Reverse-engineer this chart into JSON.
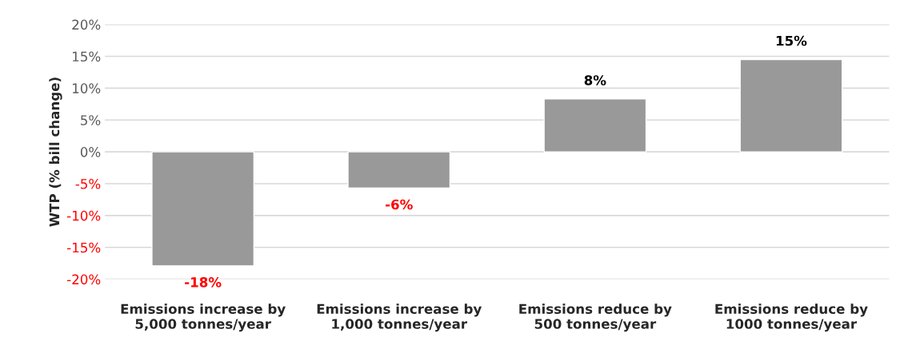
{
  "chart_data": {
    "type": "bar",
    "ylabel": "WTP (% bill change)",
    "categories": [
      "Emissions increase by\n5,000 tonnes/year",
      "Emissions increase by\n1,000 tonnes/year",
      "Emissions reduce by\n500 tonnes/year",
      "Emissions reduce by\n1000 tonnes/year"
    ],
    "values": [
      -17.9,
      -5.7,
      8.3,
      14.5
    ],
    "value_labels": [
      "-18%",
      "-6%",
      "8%",
      "15%"
    ],
    "color": "#999999",
    "ylim": [
      -20,
      20
    ],
    "yticks": [
      {
        "value": -20,
        "label": "-20%"
      },
      {
        "value": -15,
        "label": "-15%"
      },
      {
        "value": -10,
        "label": "-10%"
      },
      {
        "value": -5,
        "label": "-5%"
      },
      {
        "value": 0,
        "label": "0%"
      },
      {
        "value": 5,
        "label": "5%"
      },
      {
        "value": 10,
        "label": "10%"
      },
      {
        "value": 15,
        "label": "15%"
      },
      {
        "value": 20,
        "label": "20%"
      }
    ],
    "grid": "y"
  }
}
